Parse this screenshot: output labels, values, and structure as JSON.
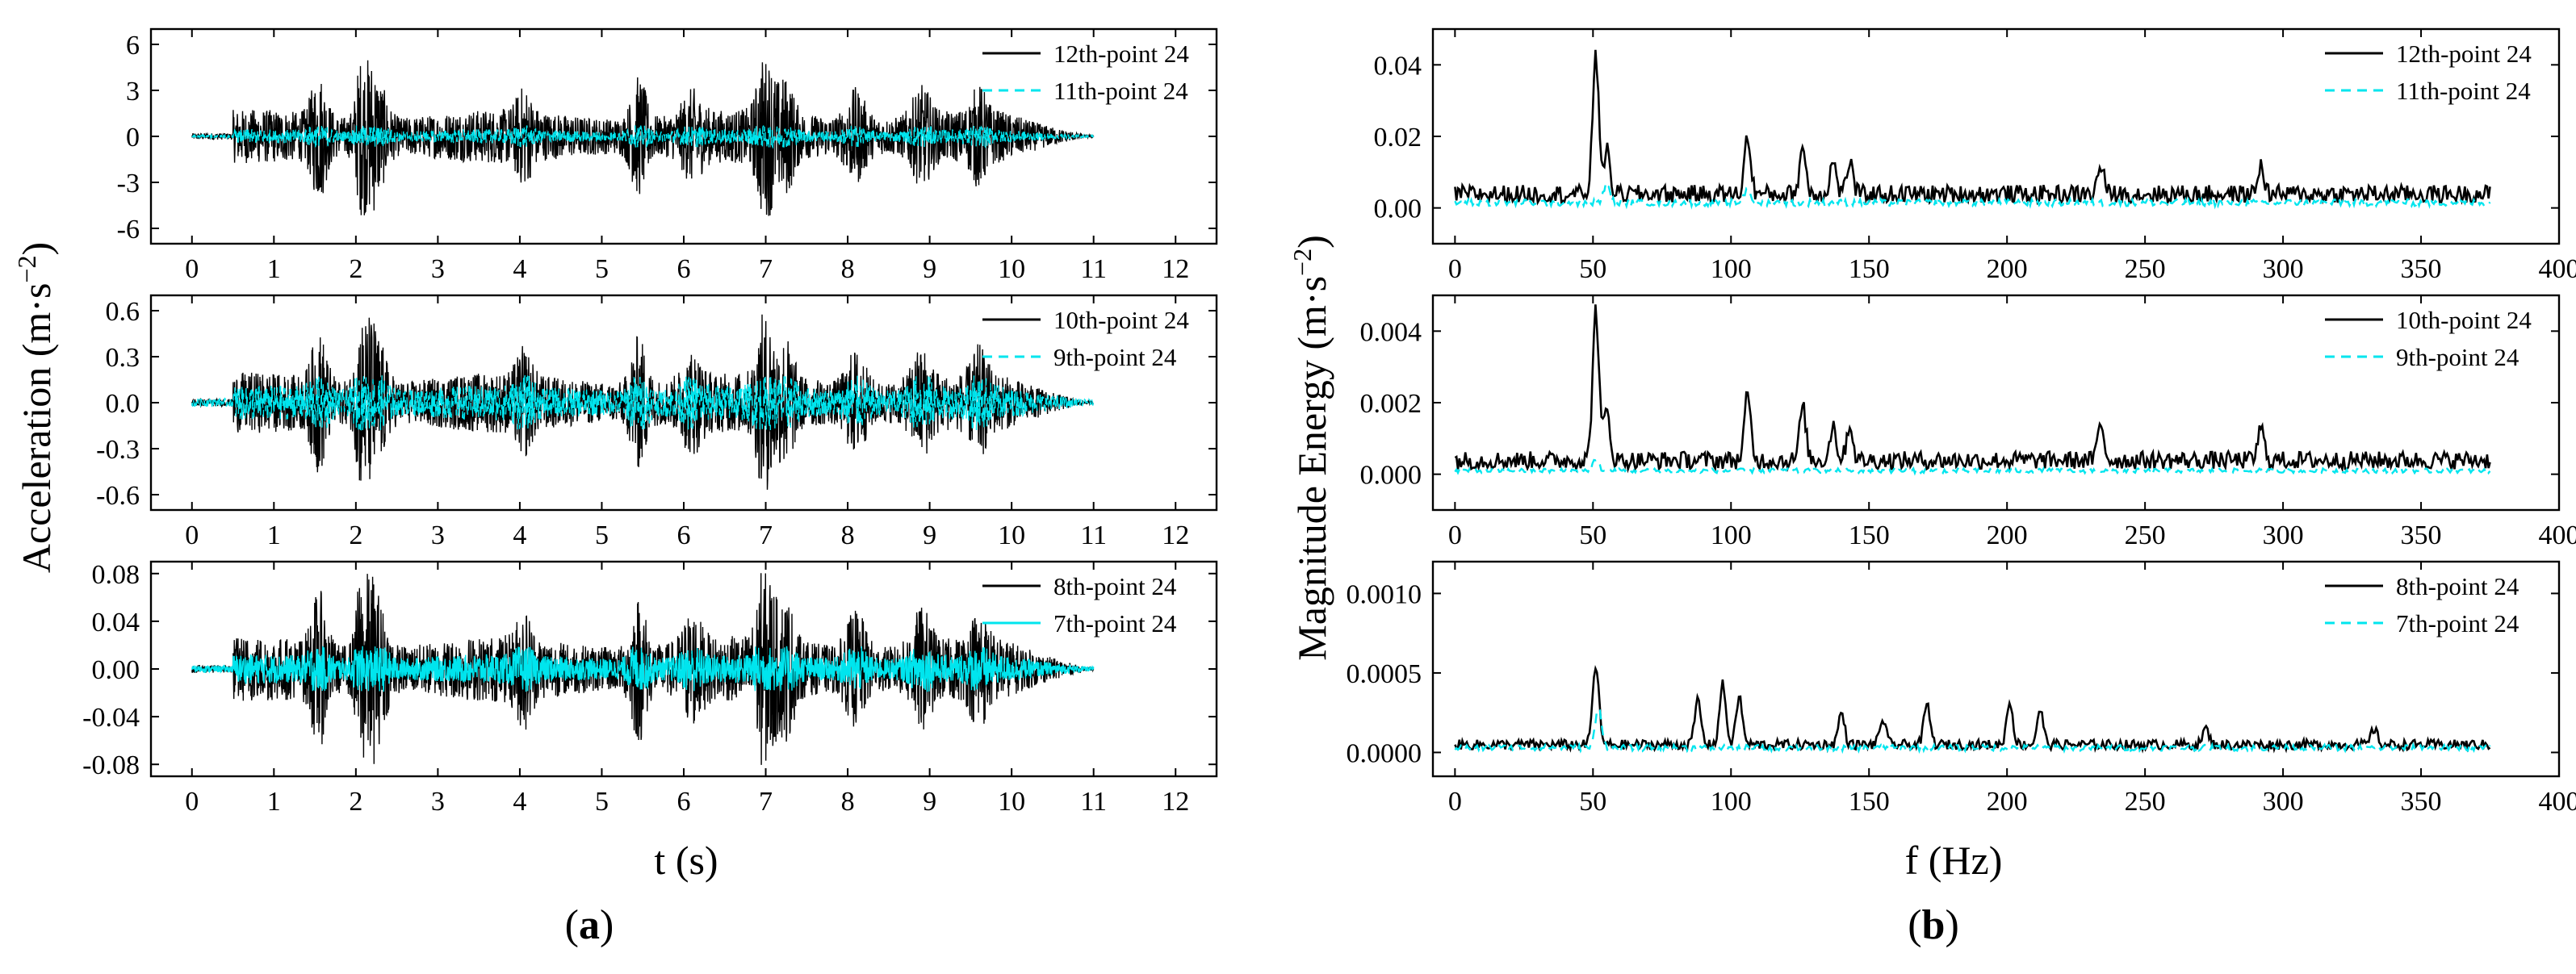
{
  "figure": {
    "panel_a_label": "a",
    "panel_b_label": "b",
    "left_ylabel_main": "Acceleration (m·s",
    "left_ylabel_sup": "−2",
    "left_ylabel_close": ")",
    "left_xlabel": "t (s)",
    "right_ylabel_main": "Magnitude Energy (m·s",
    "right_ylabel_sup": "−2",
    "right_ylabel_close": ")",
    "right_xlabel": "f (Hz)"
  },
  "colors": {
    "primary": "#000000",
    "secondary": "#00e5ee"
  },
  "chart_data": [
    {
      "type": "line",
      "panel": "a",
      "xlabel": "t (s)",
      "ylabel": "Acceleration (m·s−2)",
      "xlim": [
        -0.5,
        12.5
      ],
      "ylim": [
        -7,
        7
      ],
      "xticks": [
        "0",
        "1",
        "2",
        "3",
        "4",
        "5",
        "6",
        "7",
        "8",
        "9",
        "10",
        "11",
        "12"
      ],
      "yticks": [
        "-6",
        "-3",
        "0",
        "3",
        "6"
      ],
      "legend": "top-right",
      "series": [
        {
          "name": "12th-point 24",
          "style": "solid",
          "amplitude": 5.2,
          "duration": 11
        },
        {
          "name": "11th-point 24",
          "style": "dashed",
          "amplitude": 1.2,
          "duration": 11
        }
      ]
    },
    {
      "type": "line",
      "panel": "a",
      "xlabel": "t (s)",
      "ylabel": "Acceleration (m·s−2)",
      "xlim": [
        -0.5,
        12.5
      ],
      "ylim": [
        -0.7,
        0.7
      ],
      "xticks": [
        "0",
        "1",
        "2",
        "3",
        "4",
        "5",
        "6",
        "7",
        "8",
        "9",
        "10",
        "11",
        "12"
      ],
      "yticks": [
        "-0.6",
        "-0.3",
        "0.0",
        "0.3",
        "0.6"
      ],
      "legend": "top-right",
      "series": [
        {
          "name": "10th-point 24",
          "style": "solid",
          "amplitude": 0.58,
          "duration": 11
        },
        {
          "name": "9th-point 24",
          "style": "dashed",
          "amplitude": 0.3,
          "duration": 11
        }
      ]
    },
    {
      "type": "line",
      "panel": "a",
      "xlabel": "t (s)",
      "ylabel": "Acceleration (m·s−2)",
      "xlim": [
        -0.5,
        12.5
      ],
      "ylim": [
        -0.09,
        0.09
      ],
      "xticks": [
        "0",
        "1",
        "2",
        "3",
        "4",
        "5",
        "6",
        "7",
        "8",
        "9",
        "10",
        "11",
        "12"
      ],
      "yticks": [
        "-0.08",
        "-0.04",
        "0.00",
        "0.04",
        "0.08"
      ],
      "legend": "top-right",
      "series": [
        {
          "name": "8th-point 24",
          "style": "solid",
          "amplitude": 0.082,
          "duration": 11
        },
        {
          "name": "7th-point 24",
          "style": "solid",
          "amplitude": 0.032,
          "duration": 11
        }
      ]
    },
    {
      "type": "line",
      "panel": "b",
      "xlabel": "f (Hz)",
      "ylabel": "Magnitude Energy (m·s−2)",
      "xlim": [
        -8,
        400
      ],
      "ylim": [
        -0.01,
        0.05
      ],
      "xticks": [
        "0",
        "50",
        "100",
        "150",
        "200",
        "250",
        "300",
        "350",
        "400"
      ],
      "yticks": [
        "0.00",
        "0.02",
        "0.04"
      ],
      "legend": "top-right",
      "series": [
        {
          "name": "12th-point 24",
          "style": "solid",
          "baseline": 0.004,
          "peaks": [
            [
              51,
              0.038
            ],
            [
              55,
              0.012
            ],
            [
              106,
              0.016
            ],
            [
              126,
              0.013
            ],
            [
              137,
              0.009
            ],
            [
              143,
              0.009
            ],
            [
              234,
              0.008
            ],
            [
              292,
              0.008
            ]
          ]
        },
        {
          "name": "11th-point 24",
          "style": "dashed",
          "baseline": 0.0015,
          "peaks": [
            [
              55,
              0.005
            ],
            [
              106,
              0.004
            ]
          ]
        }
      ]
    },
    {
      "type": "line",
      "panel": "b",
      "xlabel": "f (Hz)",
      "ylabel": "Magnitude Energy (m·s−2)",
      "xlim": [
        -8,
        400
      ],
      "ylim": [
        -0.001,
        0.005
      ],
      "xticks": [
        "0",
        "50",
        "100",
        "150",
        "200",
        "250",
        "300",
        "350",
        "400"
      ],
      "yticks": [
        "0.000",
        "0.002",
        "0.004"
      ],
      "legend": "top-right",
      "series": [
        {
          "name": "10th-point 24",
          "style": "solid",
          "baseline": 0.0004,
          "peaks": [
            [
              51,
              0.0042
            ],
            [
              55,
              0.0014
            ],
            [
              106,
              0.0018
            ],
            [
              126,
              0.0015
            ],
            [
              137,
              0.001
            ],
            [
              143,
              0.001
            ],
            [
              234,
              0.001
            ],
            [
              292,
              0.0009
            ]
          ]
        },
        {
          "name": "9th-point 24",
          "style": "dashed",
          "baseline": 0.0001,
          "peaks": [
            [
              51,
              0.0003
            ]
          ]
        }
      ]
    },
    {
      "type": "line",
      "panel": "b",
      "xlabel": "f (Hz)",
      "ylabel": "Magnitude Energy (m·s−2)",
      "xlim": [
        -8,
        400
      ],
      "ylim": [
        -0.00015,
        0.0012
      ],
      "xticks": [
        "0",
        "50",
        "100",
        "150",
        "200",
        "250",
        "300",
        "350",
        "400"
      ],
      "yticks": [
        "0.0000",
        "0.0005",
        "0.0010"
      ],
      "legend": "top-right",
      "series": [
        {
          "name": "8th-point 24",
          "style": "solid",
          "baseline": 5e-05,
          "peaks": [
            [
              51,
              0.0005
            ],
            [
              88,
              0.00028
            ],
            [
              97,
              0.00038
            ],
            [
              103,
              0.0003
            ],
            [
              140,
              0.0002
            ],
            [
              155,
              0.00016
            ],
            [
              171,
              0.00025
            ],
            [
              201,
              0.00027
            ],
            [
              212,
              0.00022
            ],
            [
              272,
              0.0001
            ],
            [
              333,
              0.0001
            ]
          ]
        },
        {
          "name": "7th-point 24",
          "style": "dashed",
          "baseline": 3e-05,
          "peaks": [
            [
              52,
              0.00026
            ]
          ]
        }
      ]
    }
  ]
}
